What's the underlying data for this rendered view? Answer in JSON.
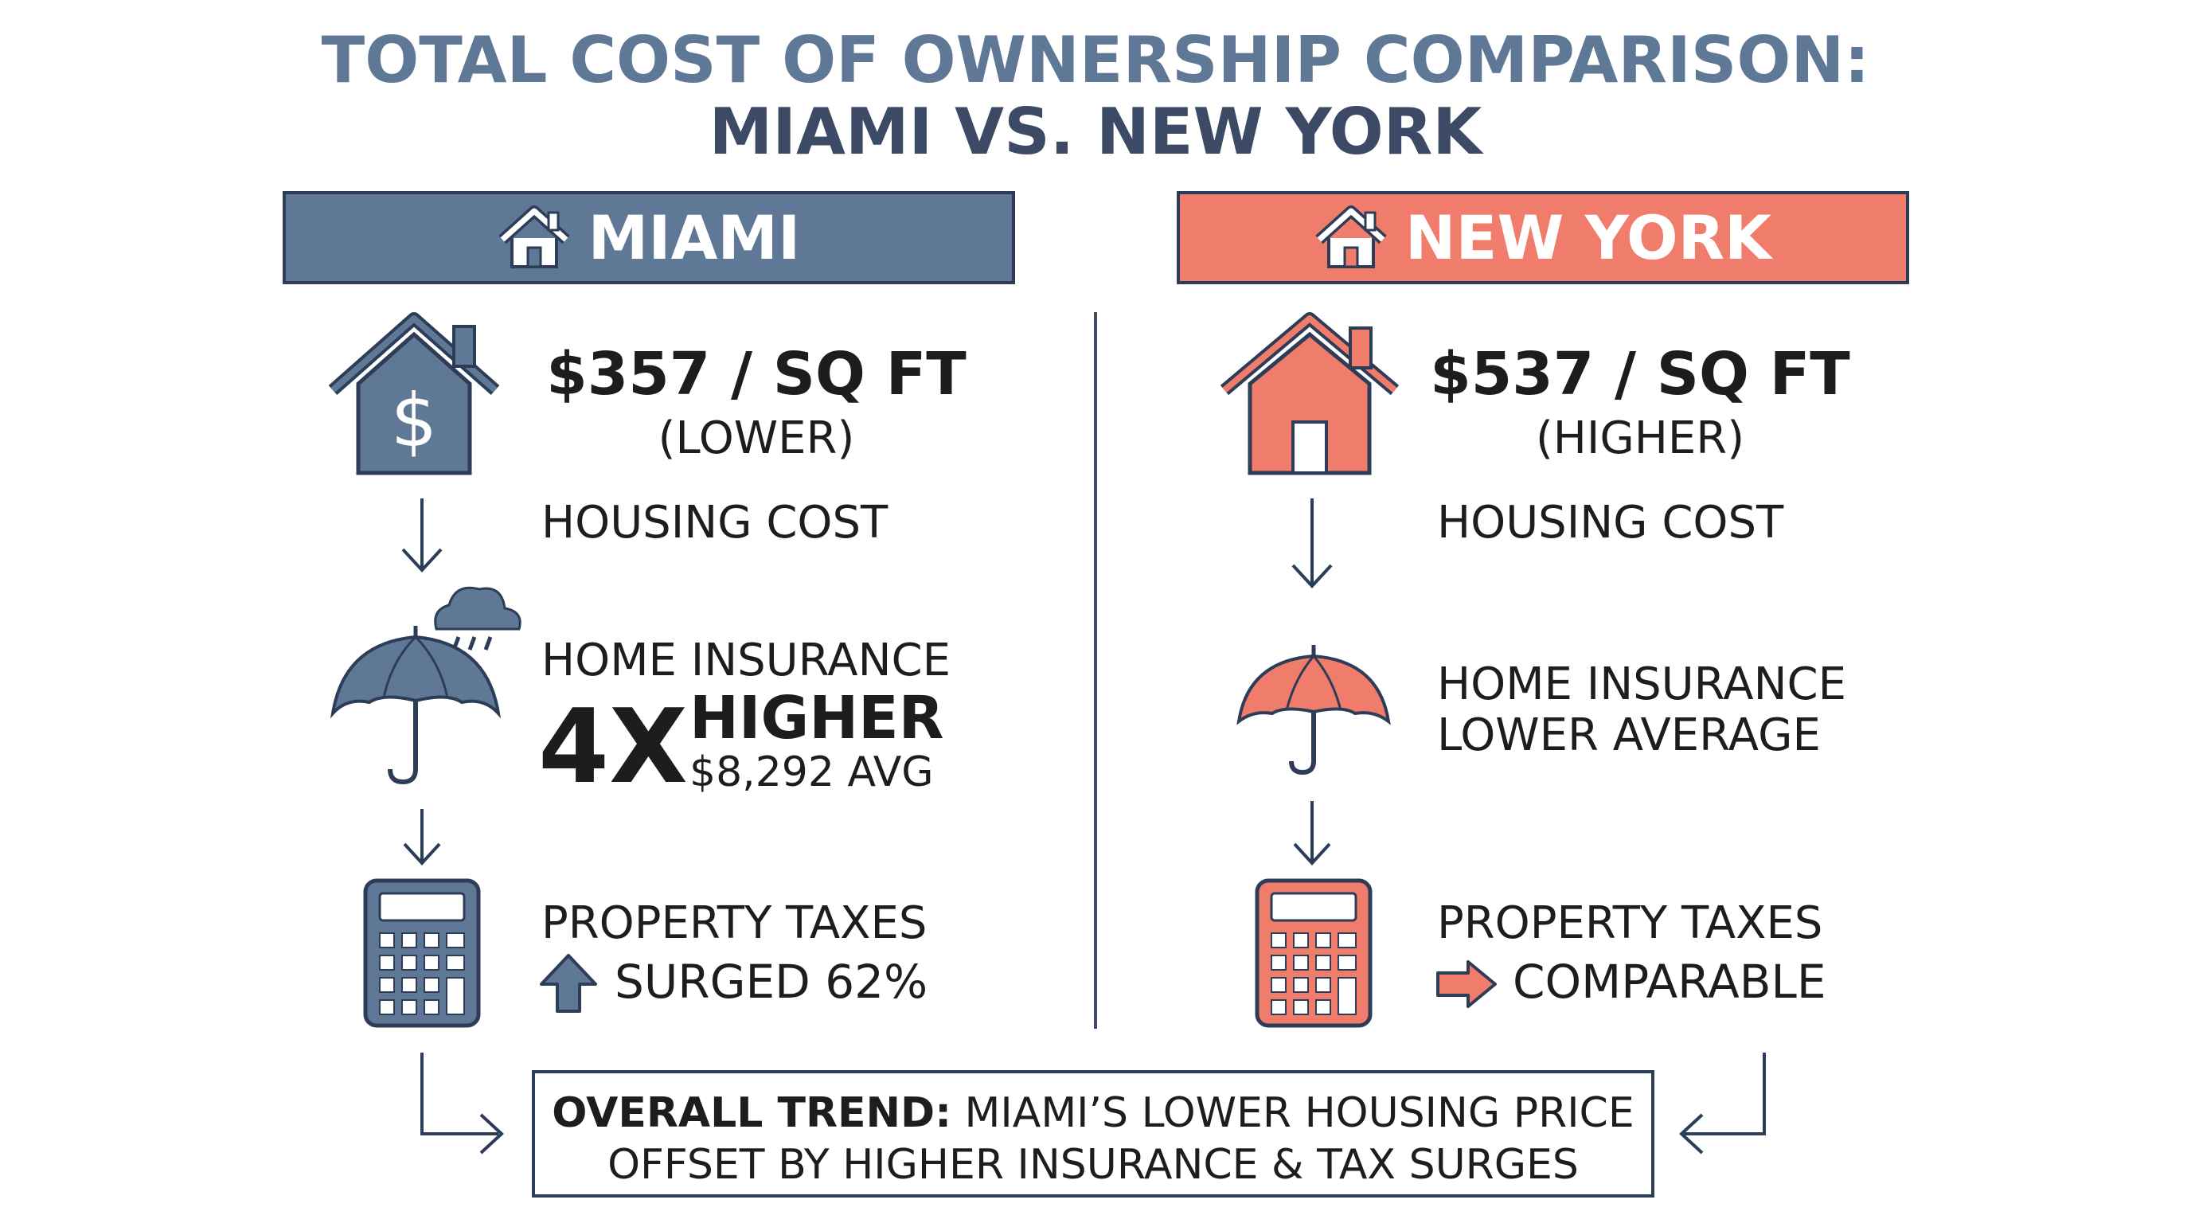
{
  "title": {
    "line1": "TOTAL COST OF OWNERSHIP COMPARISON:",
    "line2": "MIAMI VS. NEW YORK"
  },
  "colors": {
    "miami": "#5f7896",
    "new_york": "#f07d6b",
    "outline": "#2d3c57"
  },
  "miami": {
    "header": "MIAMI",
    "price": "$357 / SQ FT",
    "price_note": "(LOWER)",
    "housing_label": "HOUSING COST",
    "insurance_label": "HOME INSURANCE",
    "insurance_multiplier": "4X",
    "insurance_higher": "HIGHER",
    "insurance_avg": "$8,292 AVG",
    "taxes_label": "PROPERTY TAXES",
    "taxes_value": "SURGED 62%",
    "icons": [
      "house-dollar-icon",
      "umbrella-rain-icon",
      "calculator-icon",
      "arrow-up-icon"
    ]
  },
  "new_york": {
    "header": "NEW YORK",
    "price": "$537 / SQ FT",
    "price_note": "(HIGHER)",
    "housing_label": "HOUSING COST",
    "insurance_line1": "HOME INSURANCE",
    "insurance_line2": "LOWER AVERAGE",
    "taxes_label": "PROPERTY TAXES",
    "taxes_value": "COMPARABLE",
    "icons": [
      "house-icon",
      "umbrella-icon",
      "calculator-icon",
      "arrow-right-icon"
    ]
  },
  "trend": {
    "label": "OVERALL TREND:",
    "line1_rest": " MIAMI’S LOWER HOUSING PRICE",
    "line2": "OFFSET BY HIGHER INSURANCE & TAX SURGES"
  }
}
